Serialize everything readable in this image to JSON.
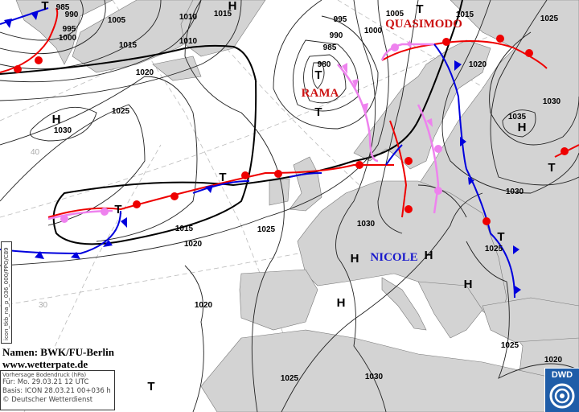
{
  "map": {
    "isobar_labels": [
      "985",
      "990",
      "995",
      "1000",
      "1005",
      "1010",
      "1015",
      "1010",
      "1015",
      "1020",
      "1025",
      "1030",
      "995",
      "990",
      "985",
      "980",
      "1005",
      "1000",
      "1015",
      "1025",
      "1020",
      "1030",
      "1035",
      "1030",
      "1030",
      "1025",
      "1015",
      "1020",
      "1020",
      "1025",
      "1025",
      "1020",
      "1025",
      "1030"
    ],
    "centers": [
      "T",
      "T",
      "H",
      "H",
      "T",
      "T",
      "H",
      "T",
      "T",
      "T",
      "H",
      "H",
      "H",
      "H",
      "T",
      "T"
    ],
    "system_names": {
      "rama": "RAMA",
      "quasimodo": "QUASIMODO",
      "nicole": "NICOLE"
    },
    "latitude_labels": [
      "40",
      "30"
    ],
    "colors": {
      "land": "#d3d3d3",
      "sea": "#ffffff",
      "warm_front": "#ee0000",
      "cold_front": "#0000dd",
      "occlusion": "#ee82ee",
      "system_name": "#cc1111"
    }
  },
  "credits": {
    "names": "Namen: BWK/FU-Berlin",
    "website": "www.wetterpate.de"
  },
  "infobox": {
    "title": "Vorhersage Bodendruck (hPa)",
    "valid": "Für:  Mo. 29.03.21  12 UTC",
    "basis": "Basis: ICON  28.03.21 00+036 h",
    "copyright": "© Deutscher Wetterdienst"
  },
  "side_code": "icon_tkb_na_p_036_000/PPO/C89",
  "logo": {
    "text": "DWD"
  }
}
